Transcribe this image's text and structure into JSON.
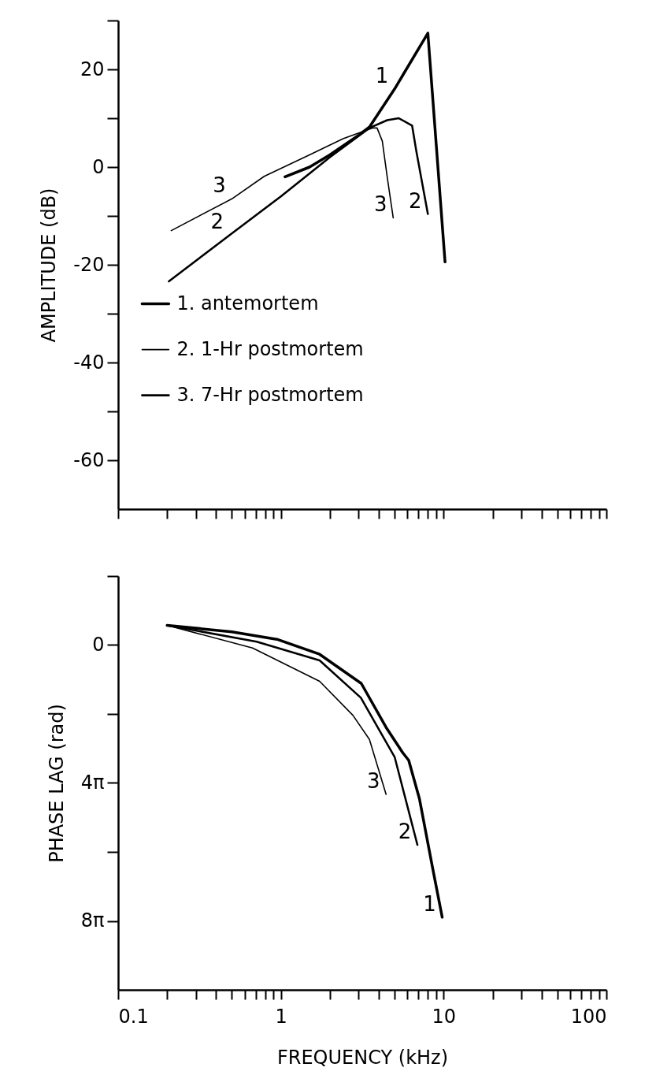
{
  "chart_data": [
    {
      "type": "line",
      "ylabel": "AMPLITUDE (dB)",
      "log": "x",
      "legend": "bottom left",
      "tick_labels": "y",
      "xlim": [
        0.1,
        100
      ],
      "ylim": [
        -70,
        30
      ],
      "xticks": [
        0.1,
        {
          "value": 0.2,
          "label": null
        },
        {
          "value": 0.3,
          "label": null
        },
        {
          "value": 0.4,
          "label": null
        },
        {
          "value": 0.5,
          "label": null
        },
        {
          "value": 0.6,
          "label": null
        },
        {
          "value": 0.7,
          "label": null
        },
        {
          "value": 0.8,
          "label": null
        },
        {
          "value": 0.9,
          "label": null
        },
        1,
        {
          "value": 2,
          "label": null
        },
        {
          "value": 3,
          "label": null
        },
        {
          "value": 4,
          "label": null
        },
        {
          "value": 5,
          "label": null
        },
        {
          "value": 6,
          "label": null
        },
        {
          "value": 7,
          "label": null
        },
        {
          "value": 8,
          "label": null
        },
        {
          "value": 9,
          "label": null
        },
        10,
        {
          "value": 20,
          "label": null
        },
        {
          "value": 30,
          "label": null
        },
        {
          "value": 40,
          "label": null
        },
        {
          "value": 50,
          "label": null
        },
        {
          "value": 60,
          "label": null
        },
        {
          "value": 70,
          "label": null
        },
        {
          "value": 80,
          "label": null
        },
        {
          "value": 90,
          "label": null
        },
        100
      ],
      "yticks": [
        -60,
        {
          "value": -50,
          "label": null
        },
        -40,
        {
          "value": -30,
          "label": null
        },
        -20,
        {
          "value": -10,
          "label": null
        },
        0,
        {
          "value": 10,
          "label": null
        },
        20,
        {
          "value": 30,
          "label": null
        }
      ],
      "series": [
        {
          "name": "1. antemortem",
          "color": "#000000",
          "x": [
            1.06,
            1.5,
            2,
            3,
            3.5,
            5,
            8,
            10.2
          ],
          "values": [
            -2,
            0,
            2.5,
            6.5,
            8.2,
            16,
            27.4,
            -19.4
          ]
        },
        {
          "name": "2. 1-Hr postmortem",
          "color": "#000000",
          "x": [
            0.205,
            0.485,
            1,
            2,
            3.5,
            4.5,
            5.3,
            6.4,
            6.8,
            8
          ],
          "values": [
            -23.4,
            -13.9,
            -6,
            2,
            8,
            9.6,
            10,
            8.5,
            3.2,
            -9.6
          ]
        },
        {
          "name": "3. 7-Hr postmortem",
          "color": "#000000",
          "x": [
            0.212,
            0.5,
            0.79,
            1.5,
            2.41,
            3.65,
            3.9,
            4.2,
            4.5,
            4.9
          ],
          "values": [
            -13,
            -6.5,
            -1.9,
            2.5,
            5.8,
            8,
            8,
            5.3,
            -2,
            -10.4
          ]
        }
      ],
      "annotations": [
        {
          "text": "1",
          "x": 5,
          "y": 16
        },
        {
          "text": "2",
          "x": 8,
          "y": -9.6
        },
        {
          "text": "3",
          "x": 0.5,
          "y": -6.5
        },
        {
          "text": "2",
          "x": 0.485,
          "y": -13.9
        },
        {
          "text": "3",
          "x": 4.9,
          "y": -10.4
        }
      ]
    },
    {
      "type": "line",
      "xlabel": "FREQUENCY (kHz)",
      "ylabel": "PHASE LAG  (rad)",
      "log": "x",
      "xlim": [
        0.1,
        100
      ],
      "ylim": [
        31.416,
        -6.283
      ],
      "xticks": [
        0.1,
        {
          "value": 0.2,
          "label": null
        },
        {
          "value": 0.3,
          "label": null
        },
        {
          "value": 0.4,
          "label": null
        },
        {
          "value": 0.5,
          "label": null
        },
        {
          "value": 0.6,
          "label": null
        },
        {
          "value": 0.7,
          "label": null
        },
        {
          "value": 0.8,
          "label": null
        },
        {
          "value": 0.9,
          "label": null
        },
        1,
        {
          "value": 2,
          "label": null
        },
        {
          "value": 3,
          "label": null
        },
        {
          "value": 4,
          "label": null
        },
        {
          "value": 5,
          "label": null
        },
        {
          "value": 6,
          "label": null
        },
        {
          "value": 7,
          "label": null
        },
        {
          "value": 8,
          "label": null
        },
        {
          "value": 9,
          "label": null
        },
        10,
        {
          "value": 20,
          "label": null
        },
        {
          "value": 30,
          "label": null
        },
        {
          "value": 40,
          "label": null
        },
        {
          "value": 50,
          "label": null
        },
        {
          "value": 60,
          "label": null
        },
        {
          "value": 70,
          "label": null
        },
        {
          "value": 80,
          "label": null
        },
        {
          "value": 90,
          "label": null
        },
        100
      ],
      "yticks": [
        {
          "value": -6.283,
          "label": null
        },
        0,
        {
          "value": 6.283,
          "label": null
        },
        {
          "value": 12.566,
          "label": "4π"
        },
        {
          "value": 18.85,
          "label": null
        },
        {
          "value": 25.133,
          "label": "8π"
        }
      ],
      "series": [
        {
          "color": "#000000",
          "x": [
            0.2,
            0.5,
            0.96,
            1.73,
            3.12,
            4.43,
            5.6,
            6.1,
            7.1,
            8.5,
            9.8
          ],
          "values": [
            -1.8,
            -1.2,
            -0.5,
            0.84,
            3.5,
            7.5,
            9.8,
            10.5,
            14,
            20.1,
            24.8
          ]
        },
        {
          "color": "#000000",
          "x": [
            0.2,
            0.71,
            1.73,
            3.1,
            5,
            6.9
          ],
          "values": [
            -1.8,
            -0.3,
            1.4,
            4.8,
            10.2,
            18.2
          ]
        },
        {
          "color": "#000000",
          "x": [
            0.2,
            0.67,
            1.73,
            2.77,
            3.5,
            4.43
          ],
          "values": [
            -1.8,
            0.27,
            3.3,
            6.4,
            8.6,
            13.6
          ]
        }
      ],
      "annotations": [
        {
          "text": "3",
          "x": 4.43,
          "y": 13.6
        },
        {
          "text": "2",
          "x": 6.9,
          "y": 18.2
        },
        {
          "text": "1",
          "x": 9.8,
          "y": 24.8
        }
      ]
    }
  ]
}
